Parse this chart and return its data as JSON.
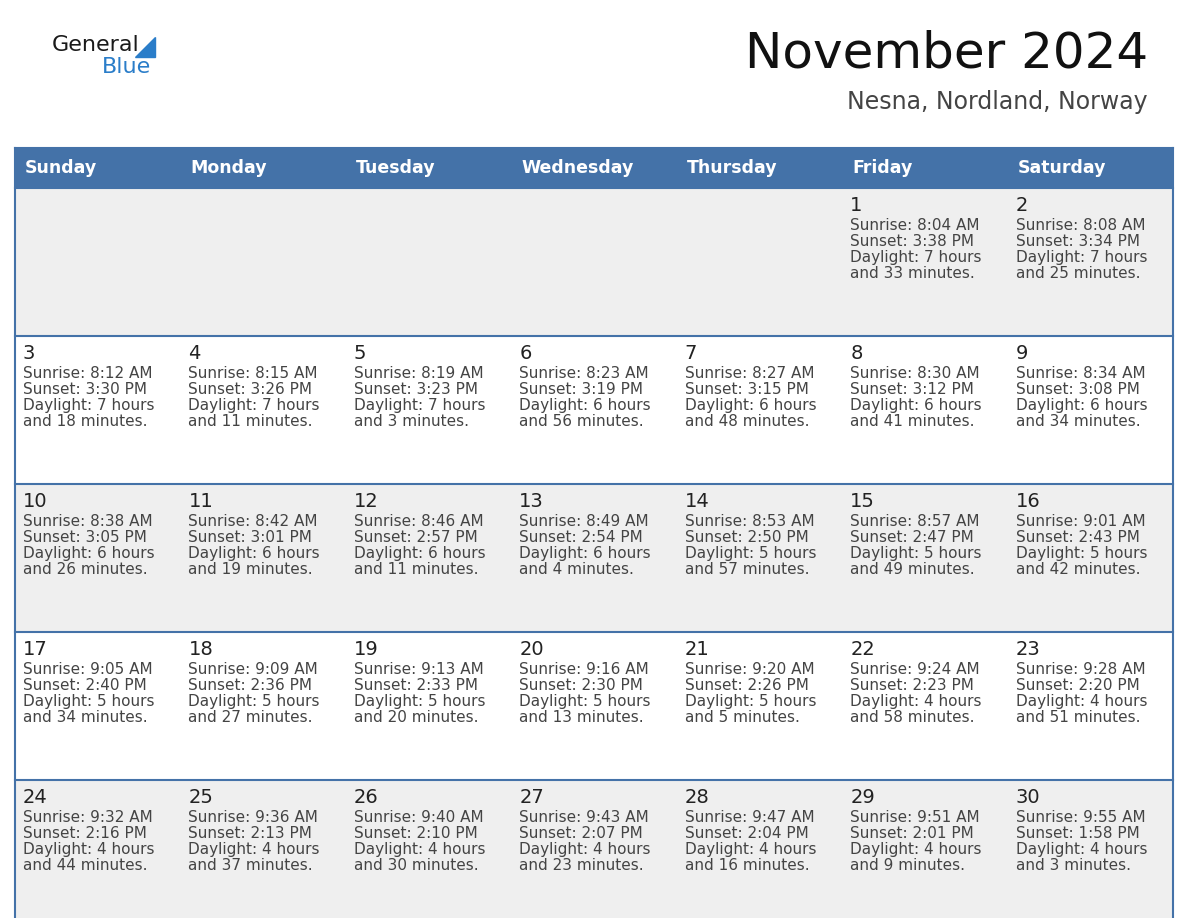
{
  "title": "November 2024",
  "subtitle": "Nesna, Nordland, Norway",
  "days_of_week": [
    "Sunday",
    "Monday",
    "Tuesday",
    "Wednesday",
    "Thursday",
    "Friday",
    "Saturday"
  ],
  "header_bg": "#4472A8",
  "header_text": "#FFFFFF",
  "cell_bg_row0": "#EFEFEF",
  "cell_bg_row1": "#FFFFFF",
  "cell_border": "#4472A8",
  "day_number_color": "#222222",
  "cell_text_color": "#444444",
  "title_color": "#111111",
  "subtitle_color": "#444444",
  "logo_general_color": "#1a1a1a",
  "logo_blue_color": "#2a7dc9",
  "calendar_data": [
    [
      null,
      null,
      null,
      null,
      null,
      {
        "day": "1",
        "sunrise": "8:04 AM",
        "sunset": "3:38 PM",
        "dl1": "Daylight: 7 hours",
        "dl2": "and 33 minutes."
      },
      {
        "day": "2",
        "sunrise": "8:08 AM",
        "sunset": "3:34 PM",
        "dl1": "Daylight: 7 hours",
        "dl2": "and 25 minutes."
      }
    ],
    [
      {
        "day": "3",
        "sunrise": "8:12 AM",
        "sunset": "3:30 PM",
        "dl1": "Daylight: 7 hours",
        "dl2": "and 18 minutes."
      },
      {
        "day": "4",
        "sunrise": "8:15 AM",
        "sunset": "3:26 PM",
        "dl1": "Daylight: 7 hours",
        "dl2": "and 11 minutes."
      },
      {
        "day": "5",
        "sunrise": "8:19 AM",
        "sunset": "3:23 PM",
        "dl1": "Daylight: 7 hours",
        "dl2": "and 3 minutes."
      },
      {
        "day": "6",
        "sunrise": "8:23 AM",
        "sunset": "3:19 PM",
        "dl1": "Daylight: 6 hours",
        "dl2": "and 56 minutes."
      },
      {
        "day": "7",
        "sunrise": "8:27 AM",
        "sunset": "3:15 PM",
        "dl1": "Daylight: 6 hours",
        "dl2": "and 48 minutes."
      },
      {
        "day": "8",
        "sunrise": "8:30 AM",
        "sunset": "3:12 PM",
        "dl1": "Daylight: 6 hours",
        "dl2": "and 41 minutes."
      },
      {
        "day": "9",
        "sunrise": "8:34 AM",
        "sunset": "3:08 PM",
        "dl1": "Daylight: 6 hours",
        "dl2": "and 34 minutes."
      }
    ],
    [
      {
        "day": "10",
        "sunrise": "8:38 AM",
        "sunset": "3:05 PM",
        "dl1": "Daylight: 6 hours",
        "dl2": "and 26 minutes."
      },
      {
        "day": "11",
        "sunrise": "8:42 AM",
        "sunset": "3:01 PM",
        "dl1": "Daylight: 6 hours",
        "dl2": "and 19 minutes."
      },
      {
        "day": "12",
        "sunrise": "8:46 AM",
        "sunset": "2:57 PM",
        "dl1": "Daylight: 6 hours",
        "dl2": "and 11 minutes."
      },
      {
        "day": "13",
        "sunrise": "8:49 AM",
        "sunset": "2:54 PM",
        "dl1": "Daylight: 6 hours",
        "dl2": "and 4 minutes."
      },
      {
        "day": "14",
        "sunrise": "8:53 AM",
        "sunset": "2:50 PM",
        "dl1": "Daylight: 5 hours",
        "dl2": "and 57 minutes."
      },
      {
        "day": "15",
        "sunrise": "8:57 AM",
        "sunset": "2:47 PM",
        "dl1": "Daylight: 5 hours",
        "dl2": "and 49 minutes."
      },
      {
        "day": "16",
        "sunrise": "9:01 AM",
        "sunset": "2:43 PM",
        "dl1": "Daylight: 5 hours",
        "dl2": "and 42 minutes."
      }
    ],
    [
      {
        "day": "17",
        "sunrise": "9:05 AM",
        "sunset": "2:40 PM",
        "dl1": "Daylight: 5 hours",
        "dl2": "and 34 minutes."
      },
      {
        "day": "18",
        "sunrise": "9:09 AM",
        "sunset": "2:36 PM",
        "dl1": "Daylight: 5 hours",
        "dl2": "and 27 minutes."
      },
      {
        "day": "19",
        "sunrise": "9:13 AM",
        "sunset": "2:33 PM",
        "dl1": "Daylight: 5 hours",
        "dl2": "and 20 minutes."
      },
      {
        "day": "20",
        "sunrise": "9:16 AM",
        "sunset": "2:30 PM",
        "dl1": "Daylight: 5 hours",
        "dl2": "and 13 minutes."
      },
      {
        "day": "21",
        "sunrise": "9:20 AM",
        "sunset": "2:26 PM",
        "dl1": "Daylight: 5 hours",
        "dl2": "and 5 minutes."
      },
      {
        "day": "22",
        "sunrise": "9:24 AM",
        "sunset": "2:23 PM",
        "dl1": "Daylight: 4 hours",
        "dl2": "and 58 minutes."
      },
      {
        "day": "23",
        "sunrise": "9:28 AM",
        "sunset": "2:20 PM",
        "dl1": "Daylight: 4 hours",
        "dl2": "and 51 minutes."
      }
    ],
    [
      {
        "day": "24",
        "sunrise": "9:32 AM",
        "sunset": "2:16 PM",
        "dl1": "Daylight: 4 hours",
        "dl2": "and 44 minutes."
      },
      {
        "day": "25",
        "sunrise": "9:36 AM",
        "sunset": "2:13 PM",
        "dl1": "Daylight: 4 hours",
        "dl2": "and 37 minutes."
      },
      {
        "day": "26",
        "sunrise": "9:40 AM",
        "sunset": "2:10 PM",
        "dl1": "Daylight: 4 hours",
        "dl2": "and 30 minutes."
      },
      {
        "day": "27",
        "sunrise": "9:43 AM",
        "sunset": "2:07 PM",
        "dl1": "Daylight: 4 hours",
        "dl2": "and 23 minutes."
      },
      {
        "day": "28",
        "sunrise": "9:47 AM",
        "sunset": "2:04 PM",
        "dl1": "Daylight: 4 hours",
        "dl2": "and 16 minutes."
      },
      {
        "day": "29",
        "sunrise": "9:51 AM",
        "sunset": "2:01 PM",
        "dl1": "Daylight: 4 hours",
        "dl2": "and 9 minutes."
      },
      {
        "day": "30",
        "sunrise": "9:55 AM",
        "sunset": "1:58 PM",
        "dl1": "Daylight: 4 hours",
        "dl2": "and 3 minutes."
      }
    ]
  ]
}
